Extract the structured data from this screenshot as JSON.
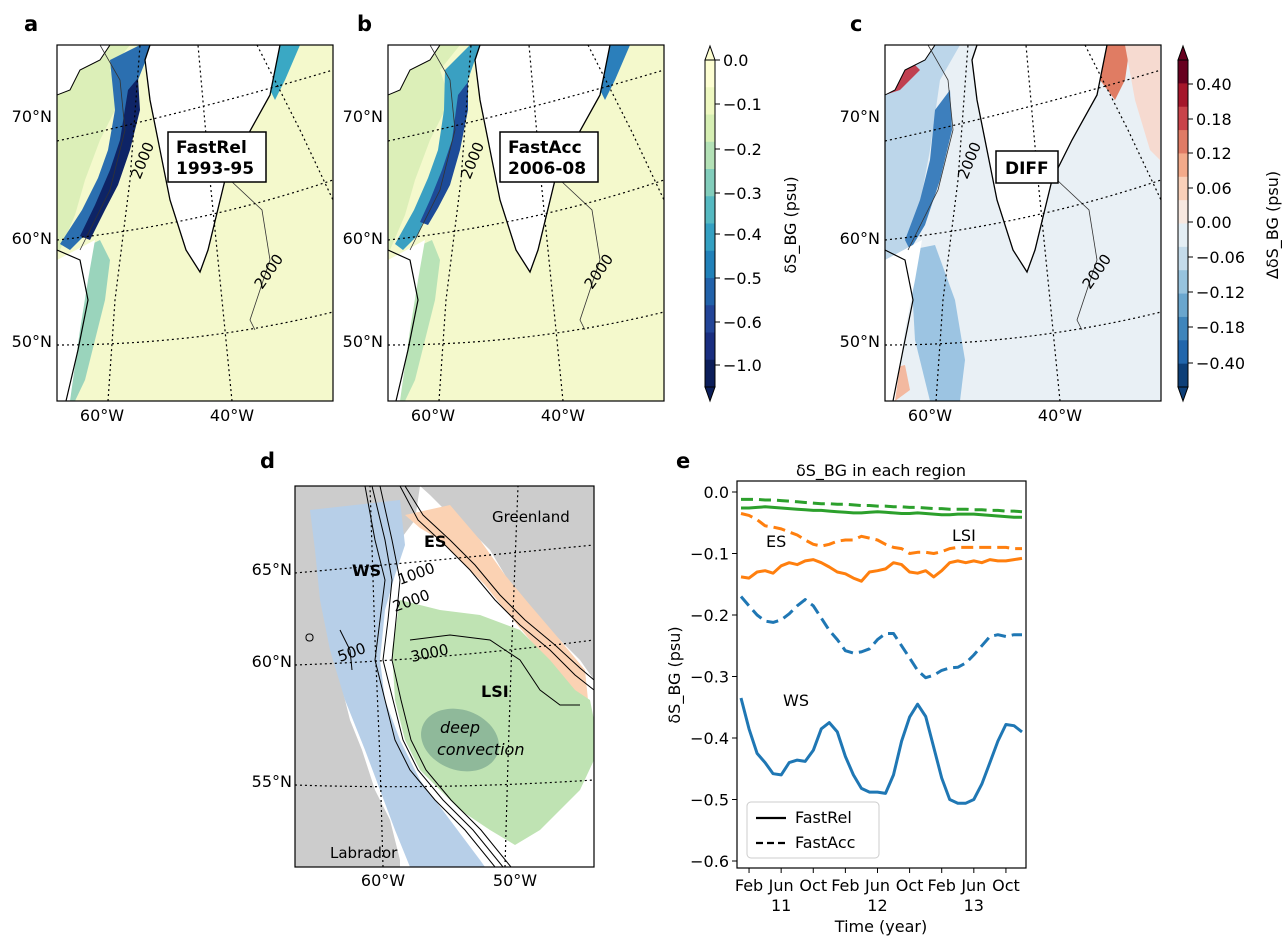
{
  "panels": {
    "a": {
      "label": "a",
      "box_line1": "FastRel",
      "box_line2": "1993-95",
      "contour": "2000"
    },
    "b": {
      "label": "b",
      "box_line1": "FastAcc",
      "box_line2": "2006-08",
      "contour": "2000"
    },
    "c": {
      "label": "c",
      "box_line1": "DIFF",
      "contour": "2000"
    },
    "d": {
      "label": "d"
    },
    "e": {
      "label": "e"
    }
  },
  "map_lat_labels": [
    "70°N",
    "60°N",
    "50°N"
  ],
  "map_lon_labels": [
    "60°W",
    "40°W"
  ],
  "colorbar1": {
    "label": "δS_BG (psu)",
    "ticks": [
      "0.0",
      "−0.1",
      "−0.2",
      "−0.3",
      "−0.4",
      "−0.5",
      "−0.6",
      "−1.0"
    ],
    "colors": [
      "#fdfed2",
      "#eef8c0",
      "#d6efb3",
      "#b3e1b6",
      "#82cdbb",
      "#55b9c1",
      "#34a0c2",
      "#2181b9",
      "#2262aa",
      "#234598",
      "#1a2e80",
      "#0c1e5a"
    ]
  },
  "colorbar2": {
    "label": "ΔδS_BG (psu)",
    "ticks": [
      "0.40",
      "0.18",
      "0.12",
      "0.06",
      "0.00",
      "−0.06",
      "−0.12",
      "−0.18",
      "−0.40"
    ],
    "colors": [
      "#67001f",
      "#a5172b",
      "#c9434a",
      "#e07b65",
      "#f3aa8a",
      "#f9d0b9",
      "#f7e8e0",
      "#e4eef4",
      "#c4dbea",
      "#97c3de",
      "#6aa6ce",
      "#3f85bb",
      "#2166ac",
      "#0d3f78"
    ]
  },
  "map_d": {
    "lat_labels": [
      "65°N",
      "60°N",
      "55°N"
    ],
    "lon_labels": [
      "60°W",
      "50°W"
    ],
    "contours": [
      "1000",
      "2000",
      "500",
      "3000"
    ],
    "regions": {
      "WS": "WS",
      "ES": "ES",
      "LSI": "LSI"
    },
    "places": {
      "greenland": "Greenland",
      "labrador": "Labrador"
    },
    "deep_convection_line1": "deep",
    "deep_convection_line2": "convection"
  },
  "colors": {
    "WS": "#1f77b4",
    "ES": "#ff7f0e",
    "LSI": "#2ca02c"
  },
  "chart_data": {
    "type": "line",
    "title": "δS_BG in each region",
    "xlabel": "Time (year)",
    "ylabel": "δS_BG (psu)",
    "ylim": [
      -0.6,
      0.0
    ],
    "yticks": [
      "0.0",
      "−0.1",
      "−0.2",
      "−0.3",
      "−0.4",
      "−0.5",
      "−0.6"
    ],
    "xticks_month": [
      "Feb",
      "Jun",
      "Oct",
      "Feb",
      "Jun",
      "Oct",
      "Feb",
      "Jun",
      "Oct"
    ],
    "xticks_year": [
      "11",
      "12",
      "13"
    ],
    "x": [
      1,
      2,
      3,
      4,
      5,
      6,
      7,
      8,
      9,
      10,
      11,
      12,
      13,
      14,
      15,
      16,
      17,
      18,
      19,
      20,
      21,
      22,
      23,
      24,
      25,
      26,
      27,
      28,
      29,
      30,
      31,
      32,
      33,
      34,
      35,
      36
    ],
    "series": [
      {
        "name": "WS",
        "style": "FastRel",
        "values": [
          -0.335,
          -0.385,
          -0.425,
          -0.44,
          -0.458,
          -0.46,
          -0.44,
          -0.436,
          -0.438,
          -0.42,
          -0.385,
          -0.375,
          -0.39,
          -0.43,
          -0.46,
          -0.482,
          -0.488,
          -0.488,
          -0.49,
          -0.46,
          -0.405,
          -0.366,
          -0.345,
          -0.365,
          -0.415,
          -0.465,
          -0.5,
          -0.506,
          -0.506,
          -0.5,
          -0.475,
          -0.44,
          -0.405,
          -0.378,
          -0.38,
          -0.39
        ]
      },
      {
        "name": "WS",
        "style": "FastAcc",
        "values": [
          -0.17,
          -0.185,
          -0.2,
          -0.21,
          -0.212,
          -0.208,
          -0.198,
          -0.185,
          -0.175,
          -0.185,
          -0.205,
          -0.225,
          -0.24,
          -0.258,
          -0.262,
          -0.26,
          -0.255,
          -0.24,
          -0.23,
          -0.23,
          -0.25,
          -0.27,
          -0.29,
          -0.302,
          -0.298,
          -0.29,
          -0.286,
          -0.285,
          -0.278,
          -0.265,
          -0.25,
          -0.235,
          -0.232,
          -0.235,
          -0.232,
          -0.232
        ]
      },
      {
        "name": "ES",
        "style": "FastRel",
        "values": [
          -0.138,
          -0.14,
          -0.13,
          -0.128,
          -0.132,
          -0.12,
          -0.115,
          -0.118,
          -0.112,
          -0.11,
          -0.115,
          -0.122,
          -0.13,
          -0.133,
          -0.14,
          -0.145,
          -0.13,
          -0.128,
          -0.125,
          -0.115,
          -0.118,
          -0.13,
          -0.132,
          -0.128,
          -0.138,
          -0.128,
          -0.115,
          -0.112,
          -0.115,
          -0.112,
          -0.115,
          -0.11,
          -0.112,
          -0.112,
          -0.11,
          -0.108
        ]
      },
      {
        "name": "ES",
        "style": "FastAcc",
        "values": [
          -0.035,
          -0.038,
          -0.045,
          -0.055,
          -0.057,
          -0.06,
          -0.065,
          -0.07,
          -0.078,
          -0.085,
          -0.088,
          -0.085,
          -0.08,
          -0.078,
          -0.078,
          -0.072,
          -0.075,
          -0.078,
          -0.085,
          -0.09,
          -0.092,
          -0.1,
          -0.098,
          -0.098,
          -0.1,
          -0.097,
          -0.092,
          -0.09,
          -0.09,
          -0.09,
          -0.09,
          -0.09,
          -0.09,
          -0.09,
          -0.092,
          -0.092
        ]
      },
      {
        "name": "LSI",
        "style": "FastRel",
        "values": [
          -0.026,
          -0.026,
          -0.025,
          -0.024,
          -0.025,
          -0.026,
          -0.027,
          -0.028,
          -0.029,
          -0.03,
          -0.03,
          -0.031,
          -0.032,
          -0.033,
          -0.034,
          -0.034,
          -0.033,
          -0.032,
          -0.033,
          -0.034,
          -0.035,
          -0.035,
          -0.034,
          -0.035,
          -0.036,
          -0.037,
          -0.037,
          -0.036,
          -0.036,
          -0.036,
          -0.037,
          -0.038,
          -0.039,
          -0.04,
          -0.041,
          -0.041
        ]
      },
      {
        "name": "LSI",
        "style": "FastAcc",
        "values": [
          -0.012,
          -0.012,
          -0.012,
          -0.013,
          -0.013,
          -0.014,
          -0.015,
          -0.016,
          -0.017,
          -0.018,
          -0.019,
          -0.019,
          -0.02,
          -0.02,
          -0.021,
          -0.022,
          -0.022,
          -0.023,
          -0.023,
          -0.024,
          -0.024,
          -0.025,
          -0.025,
          -0.026,
          -0.027,
          -0.027,
          -0.028,
          -0.028,
          -0.028,
          -0.029,
          -0.029,
          -0.03,
          -0.03,
          -0.031,
          -0.031,
          -0.032
        ]
      }
    ],
    "annotations": {
      "WS": "WS",
      "ES": "ES",
      "LSI": "LSI"
    },
    "legend": {
      "placement": "bottom-left",
      "solid": "FastRel",
      "dashed": "FastAcc"
    }
  }
}
